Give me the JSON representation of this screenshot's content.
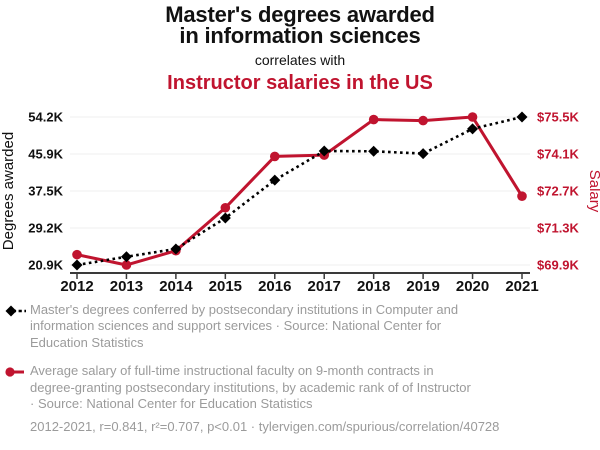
{
  "title": {
    "line1": "Master's degrees awarded",
    "line2": "in information sciences",
    "connector": "correlates with",
    "subtitle": "Instructor salaries in the US"
  },
  "colors": {
    "accent": "#c0142f",
    "text": "#111111",
    "muted_text": "#9b9b9b",
    "gridline": "#efefef",
    "axis_line": "#3a3a3a",
    "series_black": "#000000"
  },
  "chart_data": {
    "type": "line",
    "x": [
      2012,
      2013,
      2014,
      2015,
      2016,
      2017,
      2018,
      2019,
      2020,
      2021
    ],
    "x_labels": [
      "2012",
      "2013",
      "2014",
      "2015",
      "2016",
      "2017",
      "2018",
      "2019",
      "2020",
      "2021"
    ],
    "grid": "horizontal",
    "legend_position": "bottom",
    "left_axis": {
      "label": "Degrees awarded",
      "min": 20925,
      "max": 54174,
      "tick_labels": [
        "20.9K",
        "29.2K",
        "37.5K",
        "45.9K",
        "54.2K"
      ]
    },
    "right_axis": {
      "label": "Salary",
      "min": 69907,
      "max": 75527,
      "tick_labels": [
        "$69.9K",
        "$71.3K",
        "$72.7K",
        "$74.1K",
        "$75.5K"
      ]
    },
    "series": [
      {
        "name": "Master's degrees conferred by postsecondary institutions in Computer and information sciences and support services",
        "axis": "left",
        "color": "#000000",
        "line_style": "dashed",
        "marker": "diamond",
        "values": [
          20925,
          22777,
          24532,
          31474,
          39996,
          46537,
          46468,
          45945,
          51516,
          54174
        ]
      },
      {
        "name": "Average salary of full-time instructional faculty on 9-month contracts in degree-granting postsecondary institutions, by academic rank of of Instructor",
        "axis": "right",
        "color": "#c0142f",
        "line_style": "solid",
        "marker": "circle",
        "values": [
          70300,
          69907,
          70450,
          72080,
          74030,
          74080,
          75430,
          75390,
          75527,
          72520
        ]
      }
    ]
  },
  "legend": {
    "items": [
      {
        "marker": "diamond-dashed",
        "lines": [
          "Master's degrees conferred by postsecondary institutions in Computer and",
          "information sciences and support services · Source: National Center for",
          "Education Statistics"
        ]
      },
      {
        "marker": "circle-solid",
        "lines": [
          "Average salary of full-time instructional faculty on 9-month contracts in",
          "degree-granting postsecondary institutions, by academic rank of of Instructor",
          "· Source: National Center for Education Statistics"
        ]
      }
    ]
  },
  "footer": {
    "text": "2012-2021, r=0.841, r²=0.707, p<0.01 · tylervigen.com/spurious/correlation/40728"
  }
}
